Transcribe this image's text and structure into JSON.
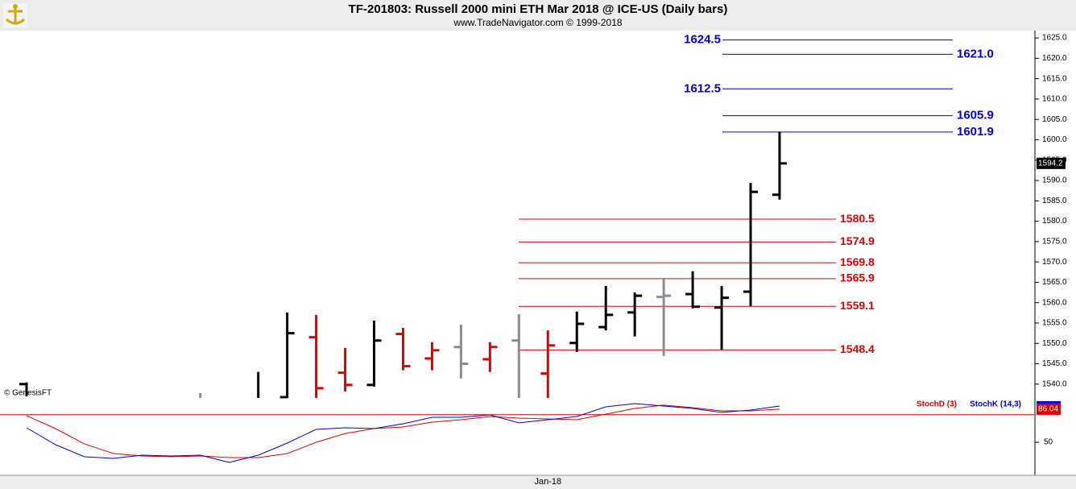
{
  "chart_data": [
    {
      "type": "ohlc",
      "title": "TF-201803:  Russell 2000 mini ETH Mar 2018 @ ICE-US  (Daily bars)",
      "subtitle": "www.TradeNavigator.com © 1999-2018",
      "watermark": "© GenesisFT",
      "categories": [
        null,
        null,
        null,
        null,
        null,
        null,
        null,
        null,
        null,
        null,
        null,
        null,
        null,
        null,
        null,
        null,
        null,
        null,
        "Jan-18",
        null,
        null,
        null,
        null,
        null,
        null,
        null,
        null
      ],
      "open": [
        1540.0,
        null,
        null,
        null,
        null,
        null,
        null,
        null,
        null,
        1536.8,
        1551.5,
        1542.8,
        1539.8,
        1552.3,
        1546.3,
        1549.1,
        1546.1,
        1550.7,
        1542.6,
        1550.1,
        1554.0,
        1557.6,
        1561.4,
        1562.1,
        1558.8,
        1562.7,
        1586.5
      ],
      "high": [
        1540.4,
        null,
        null,
        null,
        null,
        null,
        1537.8,
        null,
        1543.0,
        1557.6,
        1557.0,
        1548.9,
        1555.6,
        1553.8,
        1550.3,
        1554.6,
        1550.3,
        1557.2,
        1553.2,
        1557.8,
        1564.1,
        1562.5,
        1566.1,
        1567.7,
        1564.1,
        1589.4,
        1601.9
      ],
      "low": [
        1537.0,
        null,
        null,
        null,
        null,
        null,
        1536.6,
        null,
        1536.6,
        1536.6,
        1536.6,
        1538.2,
        1539.4,
        1543.4,
        1543.4,
        1541.4,
        1543.0,
        1536.6,
        1536.6,
        1547.9,
        1553.2,
        1551.7,
        1546.9,
        1558.6,
        1548.5,
        1559.2,
        1585.3
      ],
      "close": [
        null,
        null,
        null,
        null,
        null,
        null,
        null,
        null,
        null,
        1552.5,
        1539.0,
        1539.8,
        1550.7,
        1544.4,
        1548.3,
        1545.0,
        1549.1,
        null,
        1549.5,
        1554.8,
        1557.0,
        1561.7,
        1561.7,
        1559.0,
        1561.2,
        1587.2,
        1594.2
      ],
      "colors": [
        "#000000",
        null,
        null,
        null,
        null,
        null,
        "#8c8c8c",
        null,
        "#000000",
        "#000000",
        "#e00000",
        "#e00000",
        "#000000",
        "#e00000",
        "#e00000",
        "#8c8c8c",
        "#e00000",
        "#8c8c8c",
        "#e00000",
        "#000000",
        "#000000",
        "#000000",
        "#8c8c8c",
        "#000000",
        "#000000",
        "#000000",
        "#000000"
      ],
      "resistance_levels": {
        "color": "#0000dd",
        "values": [
          1624.5,
          1621.0,
          1612.5,
          1605.9,
          1601.9
        ],
        "value_labels": [
          "1624.5",
          "1621.0",
          "1612.5",
          "1605.9",
          "1601.9"
        ]
      },
      "support_levels": {
        "color": "#e00000",
        "values": [
          1580.5,
          1574.9,
          1569.8,
          1565.9,
          1559.1,
          1548.4
        ]
      },
      "ylim": [
        1536.4,
        1626.8
      ],
      "yticks": [
        {
          "value": 1540,
          "label": "1540.0"
        },
        {
          "value": 1545,
          "label": "1545.0"
        },
        {
          "value": 1550,
          "label": "1550.0"
        },
        {
          "value": 1555,
          "label": "1555.0"
        },
        {
          "value": 1560,
          "label": "1560.0"
        },
        {
          "value": 1565,
          "label": "1565.0"
        },
        {
          "value": 1570,
          "label": "1570.0"
        },
        {
          "value": 1575,
          "label": "1575.0"
        },
        {
          "value": 1580,
          "label": "1580.0"
        },
        {
          "value": 1585,
          "label": "1585.0"
        },
        {
          "value": 1590,
          "label": "1590.0"
        },
        {
          "value": 1595,
          "label": "1595.0"
        },
        {
          "value": 1600,
          "label": "1600.0"
        },
        {
          "value": 1605,
          "label": "1605.0"
        },
        {
          "value": 1610,
          "label": "1610.0"
        },
        {
          "value": 1615,
          "label": "1615.0"
        },
        {
          "value": 1620,
          "label": "1620.0"
        },
        {
          "value": 1625,
          "label": "1625.0"
        }
      ]
    },
    {
      "type": "line",
      "series": [
        {
          "name": "StochD (3)",
          "color": "#e00000",
          "values": [
            78.9,
            64.9,
            48.2,
            37.7,
            35.1,
            34.2,
            35.1,
            33.3,
            33.3,
            37.7,
            50.0,
            59.6,
            64.9,
            66.7,
            71.9,
            74.6,
            78.1,
            76.3,
            75.4,
            74.6,
            80.7,
            86.8,
            90.4,
            87.7,
            84.2,
            84.2,
            86.04
          ]
        },
        {
          "name": "StochK (14,3)",
          "color": "#0000dd",
          "values": [
            65.8,
            47.4,
            34.2,
            32.5,
            36.0,
            35.1,
            36.0,
            28.1,
            36.0,
            49.1,
            64.0,
            65.8,
            64.9,
            70.2,
            77.2,
            77.2,
            79.8,
            71.1,
            74.6,
            78.1,
            88.6,
            92.1,
            89.5,
            86.8,
            82.5,
            85.1,
            89.5
          ]
        }
      ],
      "level": 80,
      "level_color": "#e00000",
      "ylim": [
        0,
        100
      ],
      "yticks": [
        50
      ]
    }
  ]
}
